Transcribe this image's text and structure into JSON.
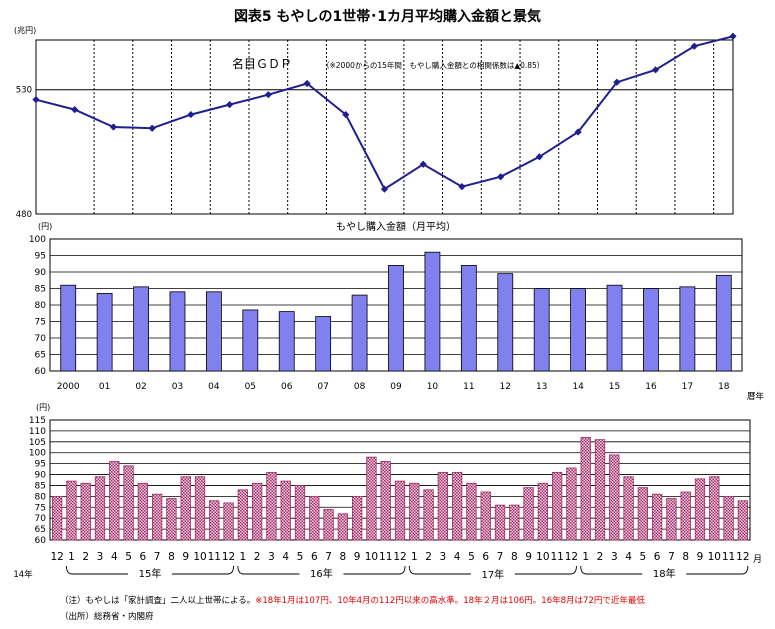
{
  "title": "図表5 もやしの1世帯･1カ月平均購入金額と景気",
  "colors": {
    "gdp_line": "#1f1f8f",
    "annual_bar": "#8080ee",
    "monthly_bar_fill": "#ffd0e8",
    "monthly_bar_stroke": "#9a2f62",
    "note_red": "#e00000"
  },
  "chart_data": [
    {
      "type": "line",
      "title": "名目ＧＤＰ",
      "subtitle": "（※2000からの15年間　もやし購入金額との相関係数は▲0.85）",
      "ylabel": "(兆円)",
      "yticks": [
        480,
        530
      ],
      "ylim": [
        480,
        550
      ],
      "reference_line": 530,
      "x": [
        "2000",
        "01",
        "02",
        "03",
        "04",
        "05",
        "06",
        "07",
        "08",
        "09",
        "10",
        "11",
        "12",
        "13",
        "14",
        "15",
        "16",
        "17",
        "18"
      ],
      "values": [
        526,
        522,
        515,
        514.5,
        520,
        524,
        528,
        532.5,
        520,
        490,
        500,
        491,
        495,
        503,
        513,
        533,
        538,
        547.5,
        551.5
      ]
    },
    {
      "type": "bar",
      "title": "もやし購入金額（月平均）",
      "ylabel": "(円)",
      "xlabel": "暦年",
      "ylim": [
        60,
        100
      ],
      "yticks": [
        60,
        65,
        70,
        75,
        80,
        85,
        90,
        95,
        100
      ],
      "categories": [
        "2000",
        "01",
        "02",
        "03",
        "04",
        "05",
        "06",
        "07",
        "08",
        "09",
        "10",
        "11",
        "12",
        "13",
        "14",
        "15",
        "16",
        "17",
        "18"
      ],
      "values": [
        86,
        83.5,
        85.5,
        84,
        84,
        78.5,
        78,
        76.5,
        83,
        92,
        96,
        92,
        89.5,
        85,
        85,
        86,
        85,
        85.5,
        89
      ]
    },
    {
      "type": "bar",
      "ylabel": "(円)",
      "xlabel": "月",
      "ylim": [
        60,
        115
      ],
      "yticks": [
        60,
        65,
        70,
        75,
        80,
        85,
        90,
        95,
        100,
        105,
        110,
        115
      ],
      "categories": [
        "12",
        "1",
        "2",
        "3",
        "4",
        "5",
        "6",
        "7",
        "8",
        "9",
        "10",
        "11",
        "12",
        "1",
        "2",
        "3",
        "4",
        "5",
        "6",
        "7",
        "8",
        "9",
        "10",
        "11",
        "12",
        "1",
        "2",
        "3",
        "4",
        "5",
        "6",
        "7",
        "8",
        "9",
        "10",
        "11",
        "12",
        "1",
        "2",
        "3",
        "4",
        "5",
        "6",
        "7",
        "8",
        "9",
        "10",
        "11",
        "12"
      ],
      "values": [
        80,
        87,
        86,
        89,
        96,
        94,
        86,
        81,
        79,
        89,
        89,
        78,
        77,
        83,
        86,
        91,
        87,
        85,
        80,
        74,
        72,
        80,
        98,
        96,
        87,
        86,
        83,
        91,
        91,
        86,
        82,
        76,
        76,
        84,
        86,
        91,
        93,
        107,
        106,
        99,
        89,
        84,
        81,
        79,
        82,
        88,
        89,
        80,
        78
      ],
      "year_labels": [
        "14年",
        "15年",
        "16年",
        "17年",
        "18年"
      ]
    }
  ],
  "notes": {
    "line1_black": "（注）もやしは「家計調査」二人以上世帯による。",
    "line1_red": "※18年1月は107円、10年4月の112円以来の高水準。18年２月は106円。16年8月は72円で近年最低",
    "line2": "（出所）総務省・内閣府"
  }
}
